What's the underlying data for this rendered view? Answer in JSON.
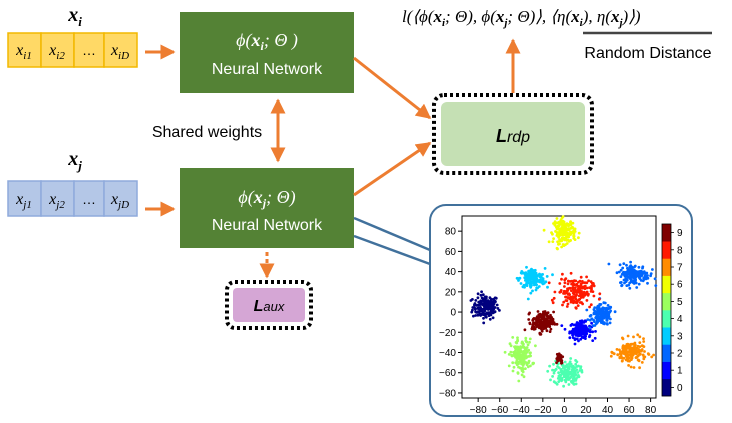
{
  "input_i": {
    "label": "x",
    "label_sub": "i",
    "cells": [
      {
        "base": "x",
        "sub": "i1"
      },
      {
        "base": "x",
        "sub": "i2"
      },
      {
        "base": "…",
        "sub": ""
      },
      {
        "base": "x",
        "sub": "iD"
      }
    ]
  },
  "input_j": {
    "label": "x",
    "label_sub": "j",
    "cells": [
      {
        "base": "x",
        "sub": "j1"
      },
      {
        "base": "x",
        "sub": "j2"
      },
      {
        "base": "…",
        "sub": ""
      },
      {
        "base": "x",
        "sub": "jD"
      }
    ]
  },
  "network_top": {
    "formula_pre": "ϕ(",
    "formula_var": "x",
    "formula_sub": "i",
    "formula_post": "; Θ )",
    "label": "Neural Network"
  },
  "network_bottom": {
    "formula_pre": "ϕ(",
    "formula_var": "x",
    "formula_sub": "j",
    "formula_post": "; Θ)",
    "label": "Neural Network"
  },
  "shared_weights_label": "Shared weights",
  "loss_rdp": {
    "main": "L",
    "sub": "rdp"
  },
  "loss_aux": {
    "main": "L",
    "sub": "aux"
  },
  "loss_formula": {
    "a": "l(⟨ϕ(",
    "b": "x",
    "c": "i",
    "d": "; Θ), ϕ(",
    "e": "x",
    "f": "j",
    "g": "; Θ)⟩, ",
    "h": "⟨η(",
    "i": "x",
    "j": "i",
    "k": "), η(",
    "l": "x",
    "m": "j",
    "n": ")⟩",
    "o": ")"
  },
  "random_distance_label": "Random Distance",
  "colors": {
    "orange_arrow": "#ED7D31",
    "green_box": "#548235",
    "yellow_fill": "#FFD966",
    "yellow_stroke": "#F2B800",
    "blue_fill": "#B4C7E7",
    "blue_stroke": "#8FAADC",
    "rdp_fill": "#C5E0B4",
    "aux_fill": "#D5A6D5",
    "inset_border": "#41719C"
  },
  "chart_data": {
    "type": "scatter",
    "xlim": [
      -95,
      85
    ],
    "ylim": [
      -85,
      95
    ],
    "x_ticks": [
      -80,
      -60,
      -40,
      -20,
      0,
      20,
      40,
      60,
      80
    ],
    "y_ticks": [
      -80,
      -60,
      -40,
      -20,
      0,
      20,
      40,
      60,
      80
    ],
    "colorbar_ticks": [
      0,
      1,
      2,
      3,
      4,
      5,
      6,
      7,
      8,
      9
    ],
    "colorbar_colors": [
      "#00007F",
      "#0000FF",
      "#0066FF",
      "#00CCFF",
      "#4CFFB0",
      "#9BFF5E",
      "#F0FF00",
      "#FF8C00",
      "#FF1A00",
      "#800000"
    ],
    "clusters": [
      {
        "label": 0,
        "x": -73,
        "y": 5,
        "sx": 6,
        "sy": 6
      },
      {
        "label": 1,
        "x": 15,
        "y": -18,
        "sx": 5,
        "sy": 4
      },
      {
        "label": 2,
        "x": 35,
        "y": -3,
        "sx": 5,
        "sy": 5
      },
      {
        "label": 3,
        "x": -30,
        "y": 33,
        "sx": 6,
        "sy": 5
      },
      {
        "label": 4,
        "x": 2,
        "y": -60,
        "sx": 6,
        "sy": 6
      },
      {
        "label": 5,
        "x": -40,
        "y": -43,
        "sx": 5,
        "sy": 8
      },
      {
        "label": 6,
        "x": 0,
        "y": 80,
        "sx": 5,
        "sy": 6
      },
      {
        "label": 7,
        "x": 62,
        "y": -40,
        "sx": 7,
        "sy": 6
      },
      {
        "label": 8,
        "x": 10,
        "y": 20,
        "sx": 8,
        "sy": 7
      },
      {
        "label": 9,
        "x": -20,
        "y": -10,
        "sx": 5,
        "sy": 5
      },
      {
        "label": 9,
        "x": -5,
        "y": -45,
        "sx": 2,
        "sy": 3
      },
      {
        "label": 2,
        "x": 65,
        "y": 37,
        "sx": 7,
        "sy": 5
      }
    ]
  }
}
